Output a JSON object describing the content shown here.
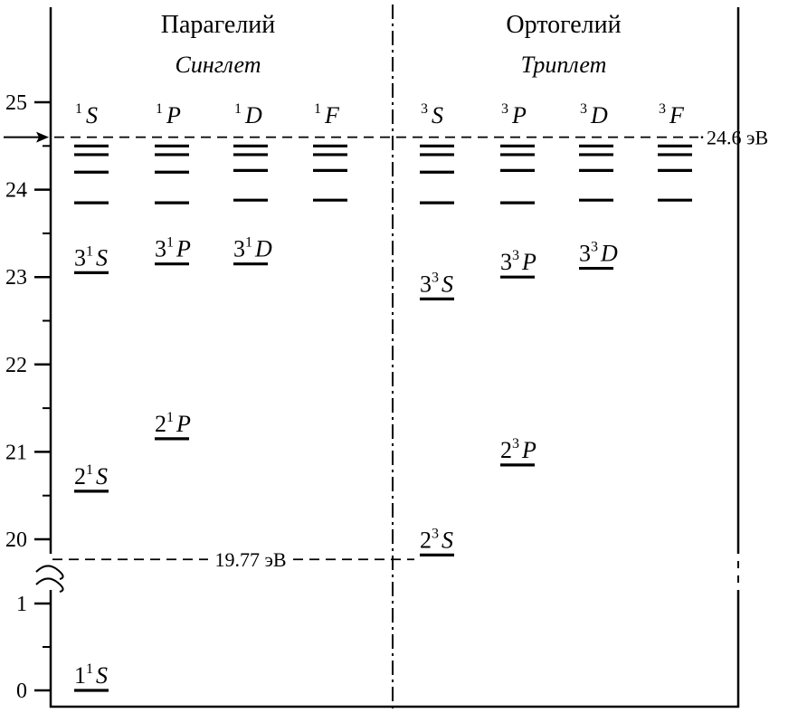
{
  "headers": {
    "para": {
      "title": "Парагелий",
      "subtitle": "Синглет"
    },
    "ortho": {
      "title": "Ортогелий",
      "subtitle": "Триплет"
    }
  },
  "y_ticks": [
    {
      "value": 25,
      "label": "25"
    },
    {
      "value": 24,
      "label": "24"
    },
    {
      "value": 23,
      "label": "23"
    },
    {
      "value": 22,
      "label": "22"
    },
    {
      "value": 21,
      "label": "21"
    },
    {
      "value": 20,
      "label": "20"
    },
    {
      "value": 1,
      "label": "1"
    },
    {
      "value": 0,
      "label": "0"
    }
  ],
  "term_columns": [
    {
      "mult": "1",
      "L": "S"
    },
    {
      "mult": "1",
      "L": "P"
    },
    {
      "mult": "1",
      "L": "D"
    },
    {
      "mult": "1",
      "L": "F"
    },
    {
      "mult": "3",
      "L": "S"
    },
    {
      "mult": "3",
      "L": "P"
    },
    {
      "mult": "3",
      "L": "D"
    },
    {
      "mult": "3",
      "L": "F"
    }
  ],
  "ionization": {
    "value": 24.6,
    "label": "24.6 эВ"
  },
  "metastable": {
    "value": 19.77,
    "label": "19.77 эВ"
  },
  "labeled_levels": [
    {
      "col": 0,
      "n": "1",
      "mult": "1",
      "L": "S",
      "energy": 0.0
    },
    {
      "col": 0,
      "n": "2",
      "mult": "1",
      "L": "S",
      "energy": 20.55
    },
    {
      "col": 1,
      "n": "2",
      "mult": "1",
      "L": "P",
      "energy": 21.15
    },
    {
      "col": 0,
      "n": "3",
      "mult": "1",
      "L": "S",
      "energy": 23.05
    },
    {
      "col": 1,
      "n": "3",
      "mult": "1",
      "L": "P",
      "energy": 23.15
    },
    {
      "col": 2,
      "n": "3",
      "mult": "1",
      "L": "D",
      "energy": 23.15
    },
    {
      "col": 4,
      "n": "2",
      "mult": "3",
      "L": "S",
      "energy": 19.82
    },
    {
      "col": 5,
      "n": "2",
      "mult": "3",
      "L": "P",
      "energy": 20.85
    },
    {
      "col": 4,
      "n": "3",
      "mult": "3",
      "L": "S",
      "energy": 22.75
    },
    {
      "col": 5,
      "n": "3",
      "mult": "3",
      "L": "P",
      "energy": 23.0
    },
    {
      "col": 6,
      "n": "3",
      "mult": "3",
      "L": "D",
      "energy": 23.1
    }
  ],
  "upper_levels": [
    {
      "col": 0,
      "energies": [
        23.85,
        24.2,
        24.4,
        24.5
      ]
    },
    {
      "col": 1,
      "energies": [
        23.85,
        24.2,
        24.4,
        24.5
      ]
    },
    {
      "col": 2,
      "energies": [
        23.88,
        24.22,
        24.4,
        24.5
      ]
    },
    {
      "col": 3,
      "energies": [
        23.88,
        24.22,
        24.4,
        24.5
      ]
    },
    {
      "col": 4,
      "energies": [
        23.85,
        24.2,
        24.4,
        24.5
      ]
    },
    {
      "col": 5,
      "energies": [
        23.85,
        24.22,
        24.4,
        24.5
      ]
    },
    {
      "col": 6,
      "energies": [
        23.88,
        24.22,
        24.4,
        24.5
      ]
    },
    {
      "col": 7,
      "energies": [
        23.88,
        24.22,
        24.4,
        24.5
      ]
    }
  ]
}
